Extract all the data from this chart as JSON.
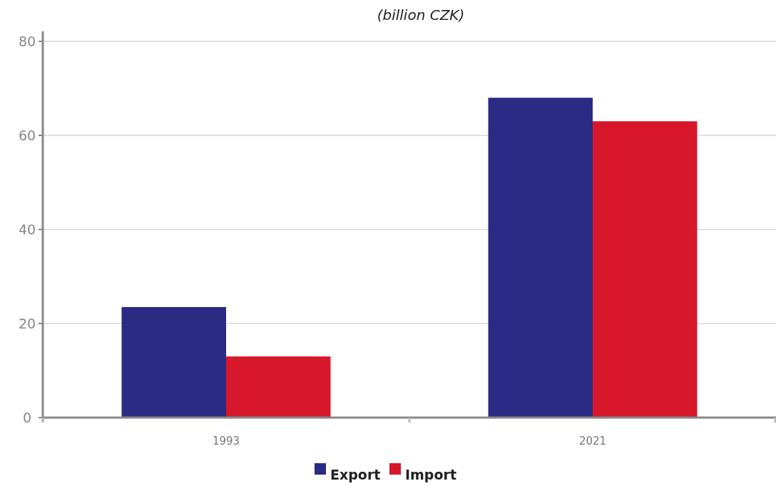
{
  "chart_data": {
    "type": "bar",
    "title": "(billion CZK)",
    "categories": [
      "1993",
      "2021"
    ],
    "series": [
      {
        "name": "Export",
        "color": "#2b2a84",
        "values": [
          23.5,
          68
        ]
      },
      {
        "name": "Import",
        "color": "#d7182a",
        "values": [
          13,
          63
        ]
      }
    ],
    "ylim": [
      0,
      80
    ],
    "yticks": [
      0,
      20,
      40,
      60,
      80
    ],
    "grid": "y",
    "legend": "bottom"
  }
}
